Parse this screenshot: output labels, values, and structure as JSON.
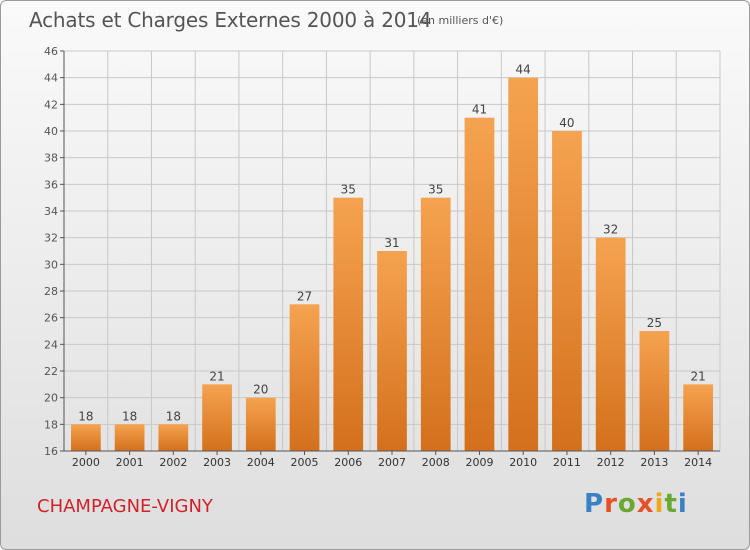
{
  "title": "Achats et Charges Externes 2000 à 2014",
  "unit_note": "(en milliers d'€)",
  "commune": "CHAMPAGNE-VIGNY",
  "brand_logo": "Proxiti",
  "colors": {
    "bar": "#f0943c",
    "bar_dark": "#d2701c",
    "commune": "#d0222a",
    "grid": "#c8c8c8"
  },
  "chart_data": {
    "type": "bar",
    "categories": [
      "2000",
      "2001",
      "2002",
      "2003",
      "2004",
      "2005",
      "2006",
      "2007",
      "2008",
      "2009",
      "2010",
      "2011",
      "2012",
      "2013",
      "2014"
    ],
    "values": [
      18,
      18,
      18,
      21,
      20,
      27,
      35,
      31,
      35,
      41,
      44,
      40,
      32,
      25,
      21
    ],
    "title": "Achats et Charges Externes 2000 à 2014",
    "xlabel": "",
    "ylabel": "",
    "ylim": [
      16,
      46
    ],
    "yticks": [
      16,
      18,
      20,
      22,
      24,
      26,
      28,
      30,
      32,
      34,
      36,
      38,
      40,
      42,
      44,
      46
    ],
    "grid": true,
    "data_labels": true
  }
}
